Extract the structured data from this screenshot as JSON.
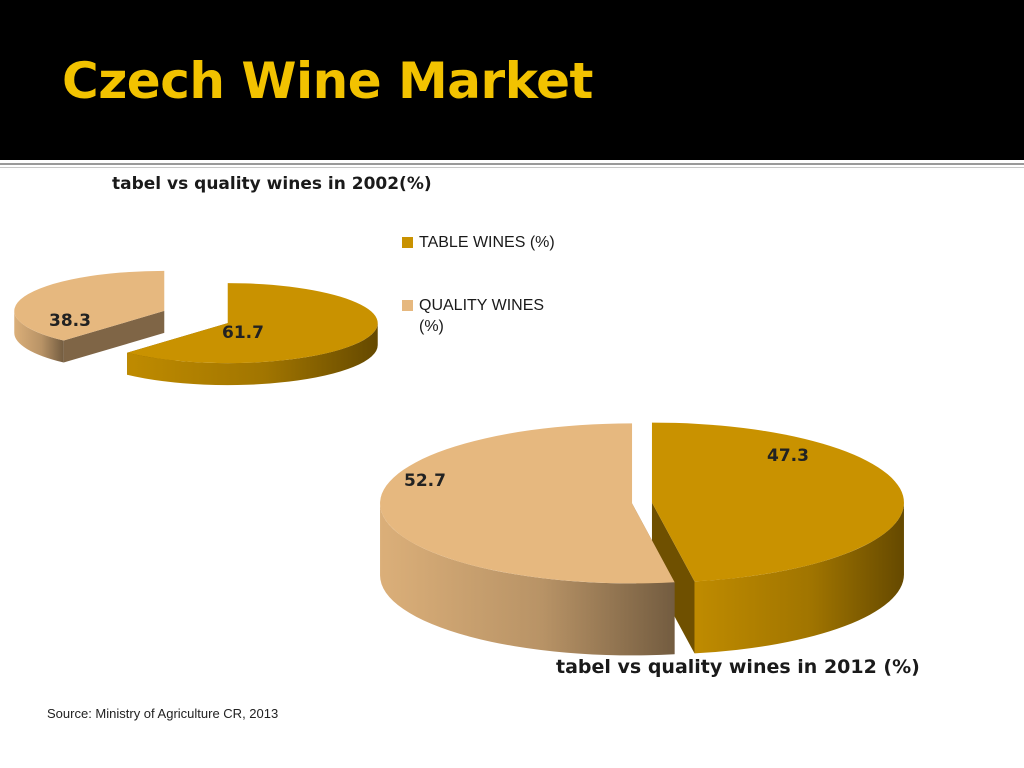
{
  "header": {
    "title": "Czech Wine Market"
  },
  "legend": {
    "items": [
      {
        "label": "TABLE WINES (%)",
        "color": "#C99200"
      },
      {
        "label": "QUALITY WINES (%)",
        "color": "#E6B87F"
      }
    ]
  },
  "source": "Source: Ministry of Agriculture CR, 2013",
  "chart_data": [
    {
      "type": "pie",
      "title": "tabel vs quality wines in 2002(%)",
      "categories": [
        "TABLE WINES (%)",
        "QUALITY WINES (%)"
      ],
      "values": [
        61.7,
        38.3
      ],
      "labels": [
        "61.7",
        "38.3"
      ],
      "colors": [
        "#C99200",
        "#E6B87F"
      ],
      "legend": "right"
    },
    {
      "type": "pie",
      "title": "tabel vs quality wines in 2012 (%)",
      "categories": [
        "TABLE WINES (%)",
        "QUALITY WINES (%)"
      ],
      "values": [
        47.3,
        52.7
      ],
      "labels": [
        "47.3",
        "52.7"
      ],
      "colors": [
        "#C99200",
        "#E6B87F"
      ],
      "legend": "right"
    }
  ]
}
